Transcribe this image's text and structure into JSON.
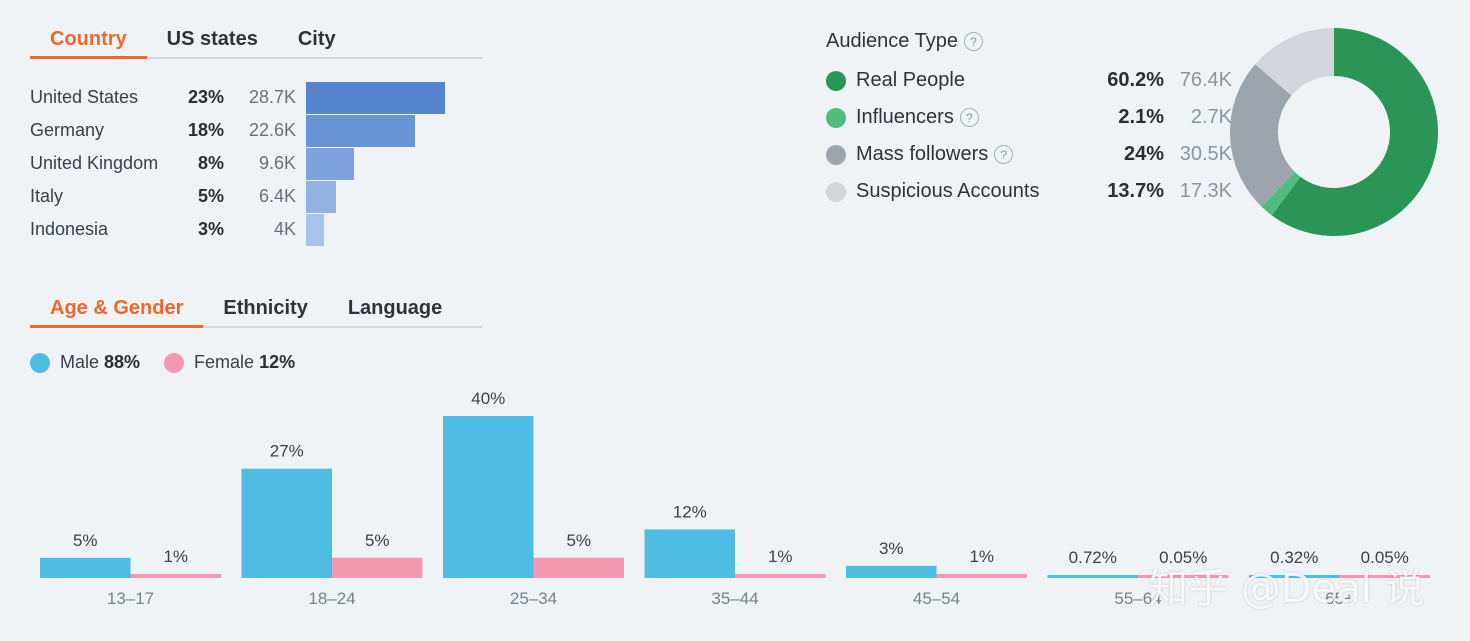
{
  "location_tabs": [
    {
      "label": "Country",
      "active": true
    },
    {
      "label": "US states",
      "active": false
    },
    {
      "label": "City",
      "active": false
    }
  ],
  "countries": [
    {
      "name": "United States",
      "pct": "23%",
      "count": "28.7K",
      "value": 23,
      "color": "#5585cf"
    },
    {
      "name": "Germany",
      "pct": "18%",
      "count": "22.6K",
      "value": 18,
      "color": "#6893d5"
    },
    {
      "name": "United Kingdom",
      "pct": "8%",
      "count": "9.6K",
      "value": 8,
      "color": "#7ea3dc"
    },
    {
      "name": "Italy",
      "pct": "5%",
      "count": "6.4K",
      "value": 5,
      "color": "#92b2e2"
    },
    {
      "name": "Indonesia",
      "pct": "3%",
      "count": "4K",
      "value": 3,
      "color": "#a8c3ea"
    }
  ],
  "audience": {
    "title": "Audience Type",
    "help": "?",
    "items": [
      {
        "name": "Real People",
        "pct": "60.2%",
        "count": "76.4K",
        "value": 60.2,
        "color": "#2a9556",
        "help": false
      },
      {
        "name": "Influencers",
        "pct": "2.1%",
        "count": "2.7K",
        "value": 2.1,
        "color": "#4fbe7c",
        "help": true
      },
      {
        "name": "Mass followers",
        "pct": "24%",
        "count": "30.5K",
        "value": 24,
        "color": "#9da4ab",
        "help": true
      },
      {
        "name": "Suspicious Accounts",
        "pct": "13.7%",
        "count": "17.3K",
        "value": 13.7,
        "color": "#d3d7dc",
        "help": false
      }
    ]
  },
  "demo_tabs": [
    {
      "label": "Age & Gender",
      "active": true
    },
    {
      "label": "Ethnicity",
      "active": false
    },
    {
      "label": "Language",
      "active": false
    }
  ],
  "gender": {
    "male_label": "Male",
    "male_pct": "88%",
    "male_color": "#4fbde3",
    "female_label": "Female",
    "female_pct": "12%",
    "female_color": "#f497b0"
  },
  "chart_data": {
    "type": "bar",
    "title": "Age & Gender",
    "categories": [
      "13–17",
      "18–24",
      "25–34",
      "35–44",
      "45–54",
      "55–64",
      "65+"
    ],
    "series": [
      {
        "name": "Male",
        "values": [
          5,
          27,
          40,
          12,
          3,
          0.72,
          0.32
        ],
        "labels": [
          "5%",
          "27%",
          "40%",
          "12%",
          "3%",
          "0.72%",
          "0.32%"
        ]
      },
      {
        "name": "Female",
        "values": [
          1,
          5,
          5,
          1,
          1,
          0.05,
          0.05
        ],
        "labels": [
          "1%",
          "5%",
          "5%",
          "1%",
          "1%",
          "0.05%",
          "0.05%"
        ]
      }
    ],
    "ylim": [
      0,
      40
    ]
  },
  "watermark": "知乎 @Deal 说"
}
